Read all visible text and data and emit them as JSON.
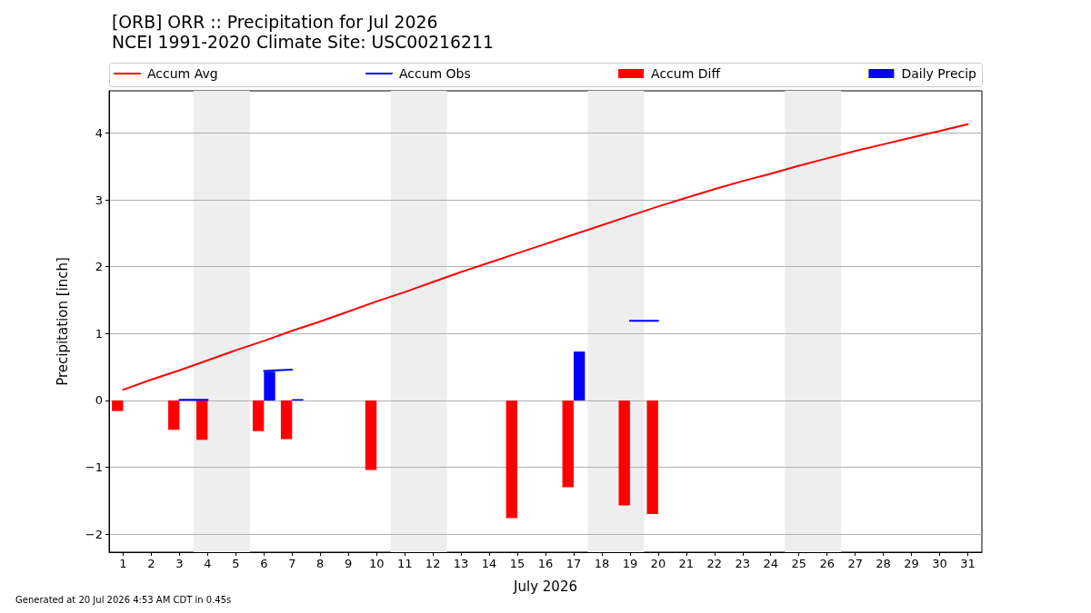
{
  "chart_data": {
    "type": "bar",
    "title": "[ORB] ORR :: Precipitation for Jul 2026",
    "subtitle": "NCEI 1991-2020 Climate Site: USC00216211",
    "xlabel": "July 2026",
    "ylabel": "Precipitation [inch]",
    "annotations": [
      "Generated at 20 Jul 2026 4:53 AM CDT in 0.45s"
    ],
    "x": [
      1,
      2,
      3,
      4,
      5,
      6,
      7,
      8,
      9,
      10,
      11,
      12,
      13,
      14,
      15,
      16,
      17,
      18,
      19,
      20,
      21,
      22,
      23,
      24,
      25,
      26,
      27,
      28,
      29,
      30,
      31
    ],
    "series": [
      {
        "name": "Accum Avg",
        "type": "line",
        "color": "#ff0000",
        "values": [
          0.16,
          0.31,
          0.45,
          0.6,
          0.75,
          0.89,
          1.04,
          1.18,
          1.33,
          1.48,
          1.62,
          1.77,
          1.92,
          2.06,
          2.2,
          2.34,
          2.48,
          2.62,
          2.76,
          2.9,
          3.03,
          3.16,
          3.28,
          3.39,
          3.51,
          3.62,
          3.73,
          3.83,
          3.93,
          4.03,
          4.13
        ]
      },
      {
        "name": "Accum Obs",
        "type": "line",
        "color": "#0000ff",
        "values": [
          null,
          null,
          0.01,
          0.01,
          null,
          0.44,
          0.46,
          null,
          null,
          null,
          null,
          null,
          null,
          null,
          null,
          null,
          null,
          null,
          1.19,
          1.19,
          null,
          null,
          null,
          null,
          null,
          null,
          null,
          null,
          null,
          null,
          null
        ]
      },
      {
        "name": "Accum Diff",
        "color": "#ff0000",
        "values": [
          -0.16,
          null,
          -0.44,
          -0.59,
          null,
          -0.46,
          -0.58,
          null,
          null,
          -1.04,
          null,
          null,
          null,
          null,
          -1.76,
          null,
          -1.3,
          null,
          -1.57,
          -1.7,
          null,
          null,
          null,
          null,
          null,
          null,
          null,
          null,
          null,
          null,
          null
        ]
      },
      {
        "name": "Daily Precip",
        "color": "#0000ff",
        "values": [
          null,
          null,
          null,
          null,
          null,
          0.43,
          0.02,
          null,
          null,
          null,
          null,
          null,
          null,
          null,
          null,
          null,
          0.73,
          null,
          null,
          null,
          null,
          null,
          null,
          null,
          null,
          null,
          null,
          null,
          null,
          null,
          null
        ]
      }
    ],
    "xlim": [
      0.5,
      31.5
    ],
    "xticks": [
      1,
      2,
      3,
      4,
      5,
      6,
      7,
      8,
      9,
      10,
      11,
      12,
      13,
      14,
      15,
      16,
      17,
      18,
      19,
      20,
      21,
      22,
      23,
      24,
      25,
      26,
      27,
      28,
      29,
      30,
      31
    ],
    "ylim": [
      -2.27,
      4.63
    ],
    "yticks": [
      {
        "value": -2,
        "label": "−2"
      },
      {
        "value": -1,
        "label": "−1"
      },
      0,
      1,
      2,
      3,
      4
    ],
    "bands": [
      {
        "axis": "x",
        "from": 3.5,
        "to": 5.5,
        "color": "#eeeeee"
      },
      {
        "axis": "x",
        "from": 10.5,
        "to": 12.5,
        "color": "#eeeeee"
      },
      {
        "axis": "x",
        "from": 17.5,
        "to": 19.5,
        "color": "#eeeeee"
      },
      {
        "axis": "x",
        "from": 24.5,
        "to": 26.5,
        "color": "#eeeeee"
      }
    ],
    "grid": "y",
    "legend": "top",
    "marker": "none"
  }
}
